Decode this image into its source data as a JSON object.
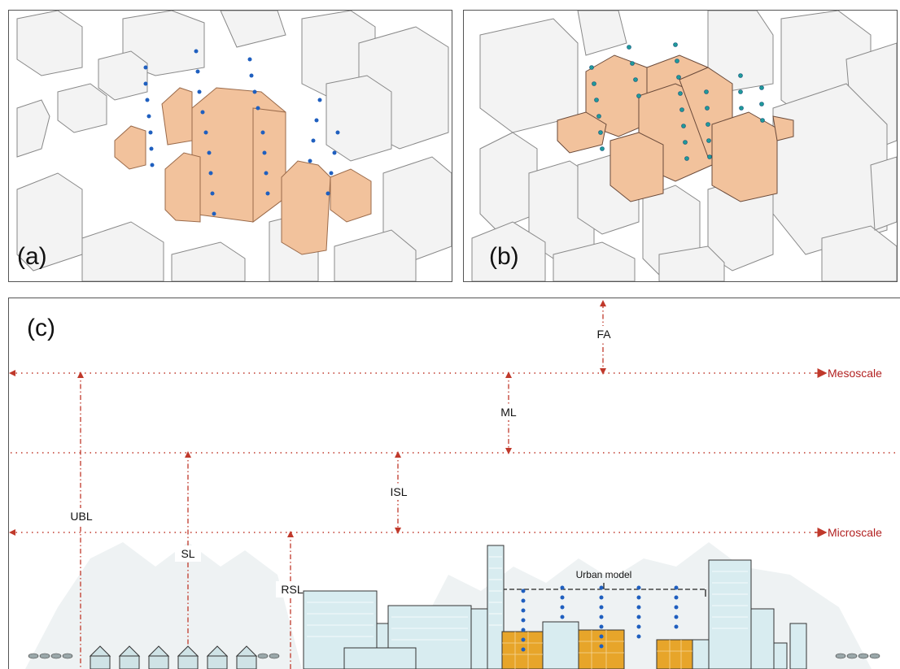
{
  "panels": {
    "a": {
      "label": "(a)"
    },
    "b": {
      "label": "(b)"
    },
    "c": {
      "label": "(c)"
    }
  },
  "scales": {
    "mesoscale": "Mesoscale",
    "microscale": "Microscale"
  },
  "layers": {
    "fa": "FA",
    "ml": "ML",
    "isl": "ISL",
    "ubl": "UBL",
    "sl": "SL",
    "rsl": "RSL"
  },
  "model": {
    "urban_model_label": "Urban model"
  },
  "colors": {
    "building_highlight": "#f2c29c",
    "building_gray": "#f2f2f2",
    "sensor_blue": "#1f5fbf",
    "sensor_teal": "#1f9a9a",
    "scale_line": "#c0392b",
    "city_blue": "#d8ecf0",
    "city_orange": "#e7a52a"
  }
}
